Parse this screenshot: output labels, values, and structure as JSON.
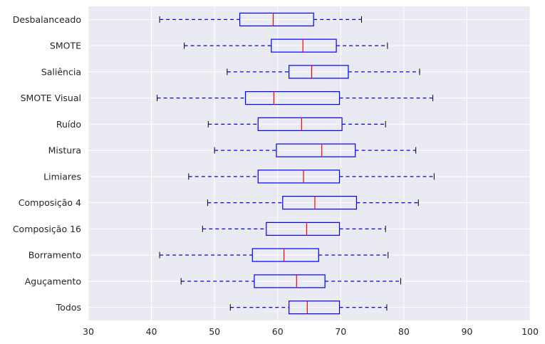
{
  "chart_data": {
    "type": "boxplot",
    "orientation": "horizontal",
    "title": "",
    "xlabel": "",
    "ylabel": "",
    "xlim": [
      30,
      100
    ],
    "xticks": [
      30,
      40,
      50,
      60,
      70,
      80,
      90,
      100
    ],
    "grid": true,
    "colors": {
      "background": "#eaeaf2",
      "grid": "#ffffff",
      "box": "#0000ff",
      "whisker": "#0000ff",
      "cap": "#000000",
      "median": "#ff0000"
    },
    "categories": [
      "Desbalanceado",
      "SMOTE",
      "Saliência",
      "SMOTE Visual",
      "Ruído",
      "Mistura",
      "Limiares",
      "Composição 4",
      "Composição 16",
      "Borramento",
      "Aguçamento",
      "Todos"
    ],
    "boxes": [
      {
        "label": "Desbalanceado",
        "whislo": 41.3,
        "q1": 54.0,
        "med": 59.3,
        "q3": 65.7,
        "whishi": 73.3
      },
      {
        "label": "SMOTE",
        "whislo": 45.2,
        "q1": 59.0,
        "med": 64.0,
        "q3": 69.3,
        "whishi": 77.4
      },
      {
        "label": "Saliência",
        "whislo": 52.0,
        "q1": 61.8,
        "med": 65.4,
        "q3": 71.2,
        "whishi": 82.5
      },
      {
        "label": "SMOTE Visual",
        "whislo": 40.9,
        "q1": 54.9,
        "med": 59.4,
        "q3": 69.8,
        "whishi": 84.6
      },
      {
        "label": "Ruído",
        "whislo": 49.0,
        "q1": 56.9,
        "med": 63.8,
        "q3": 70.2,
        "whishi": 77.1
      },
      {
        "label": "Mistura",
        "whislo": 50.0,
        "q1": 59.8,
        "med": 67.0,
        "q3": 72.3,
        "whishi": 81.9
      },
      {
        "label": "Limiares",
        "whislo": 45.9,
        "q1": 56.9,
        "med": 64.1,
        "q3": 69.8,
        "whishi": 84.8
      },
      {
        "label": "Composição 4",
        "whislo": 48.9,
        "q1": 60.8,
        "med": 65.9,
        "q3": 72.5,
        "whishi": 82.3
      },
      {
        "label": "Composição 16",
        "whislo": 48.1,
        "q1": 58.2,
        "med": 64.6,
        "q3": 69.8,
        "whishi": 77.1
      },
      {
        "label": "Borramento",
        "whislo": 41.3,
        "q1": 56.0,
        "med": 61.0,
        "q3": 66.5,
        "whishi": 77.5
      },
      {
        "label": "Aguçamento",
        "whislo": 44.7,
        "q1": 56.3,
        "med": 63.0,
        "q3": 67.5,
        "whishi": 79.5
      },
      {
        "label": "Todos",
        "whislo": 52.5,
        "q1": 61.8,
        "med": 64.7,
        "q3": 69.8,
        "whishi": 77.3
      }
    ]
  }
}
